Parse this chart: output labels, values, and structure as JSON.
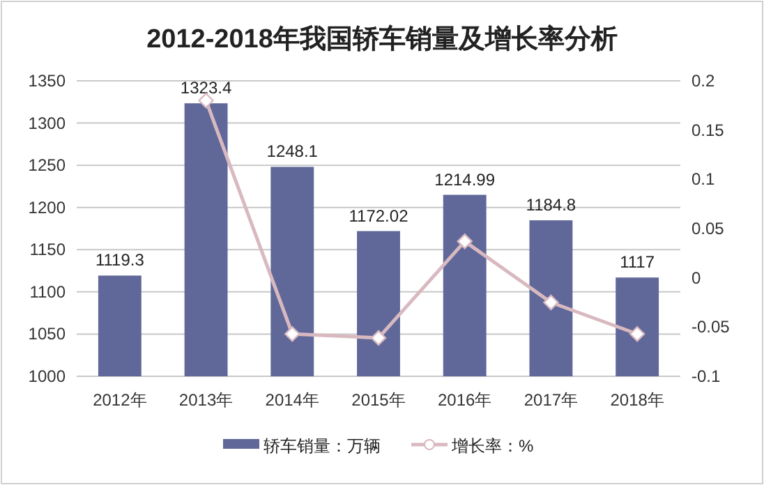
{
  "chart_data": {
    "type": "bar",
    "title": "2012-2018年我国轿车销量及增长率分析",
    "categories": [
      "2012年",
      "2013年",
      "2014年",
      "2015年",
      "2016年",
      "2017年",
      "2018年"
    ],
    "series": [
      {
        "name": "轿车销量：万辆",
        "color": "#5f6899",
        "values": [
          1119.3,
          1323.4,
          1248.1,
          1172.02,
          1214.99,
          1184.8,
          1117
        ],
        "value_labels": [
          "1119.3",
          "1323.4",
          "1248.1",
          "1172.02",
          "1214.99",
          "1184.8",
          "1117"
        ]
      },
      {
        "name": "增长率：%",
        "type": "line",
        "axis": "y2",
        "color": "#d9b9c0",
        "marker": "diamond",
        "values": [
          null,
          0.18,
          -0.057,
          -0.061,
          0.037,
          -0.025,
          -0.057
        ]
      }
    ],
    "ylim": [
      1000,
      1350
    ],
    "yticks": [
      1000,
      1050,
      1100,
      1150,
      1200,
      1250,
      1300,
      1350
    ],
    "y2lim": [
      -0.1,
      0.2
    ],
    "y2ticks": [
      -0.1,
      -0.05,
      0,
      0.05,
      0.1,
      0.15,
      0.2
    ],
    "grid": "y",
    "legend": "bottom"
  }
}
